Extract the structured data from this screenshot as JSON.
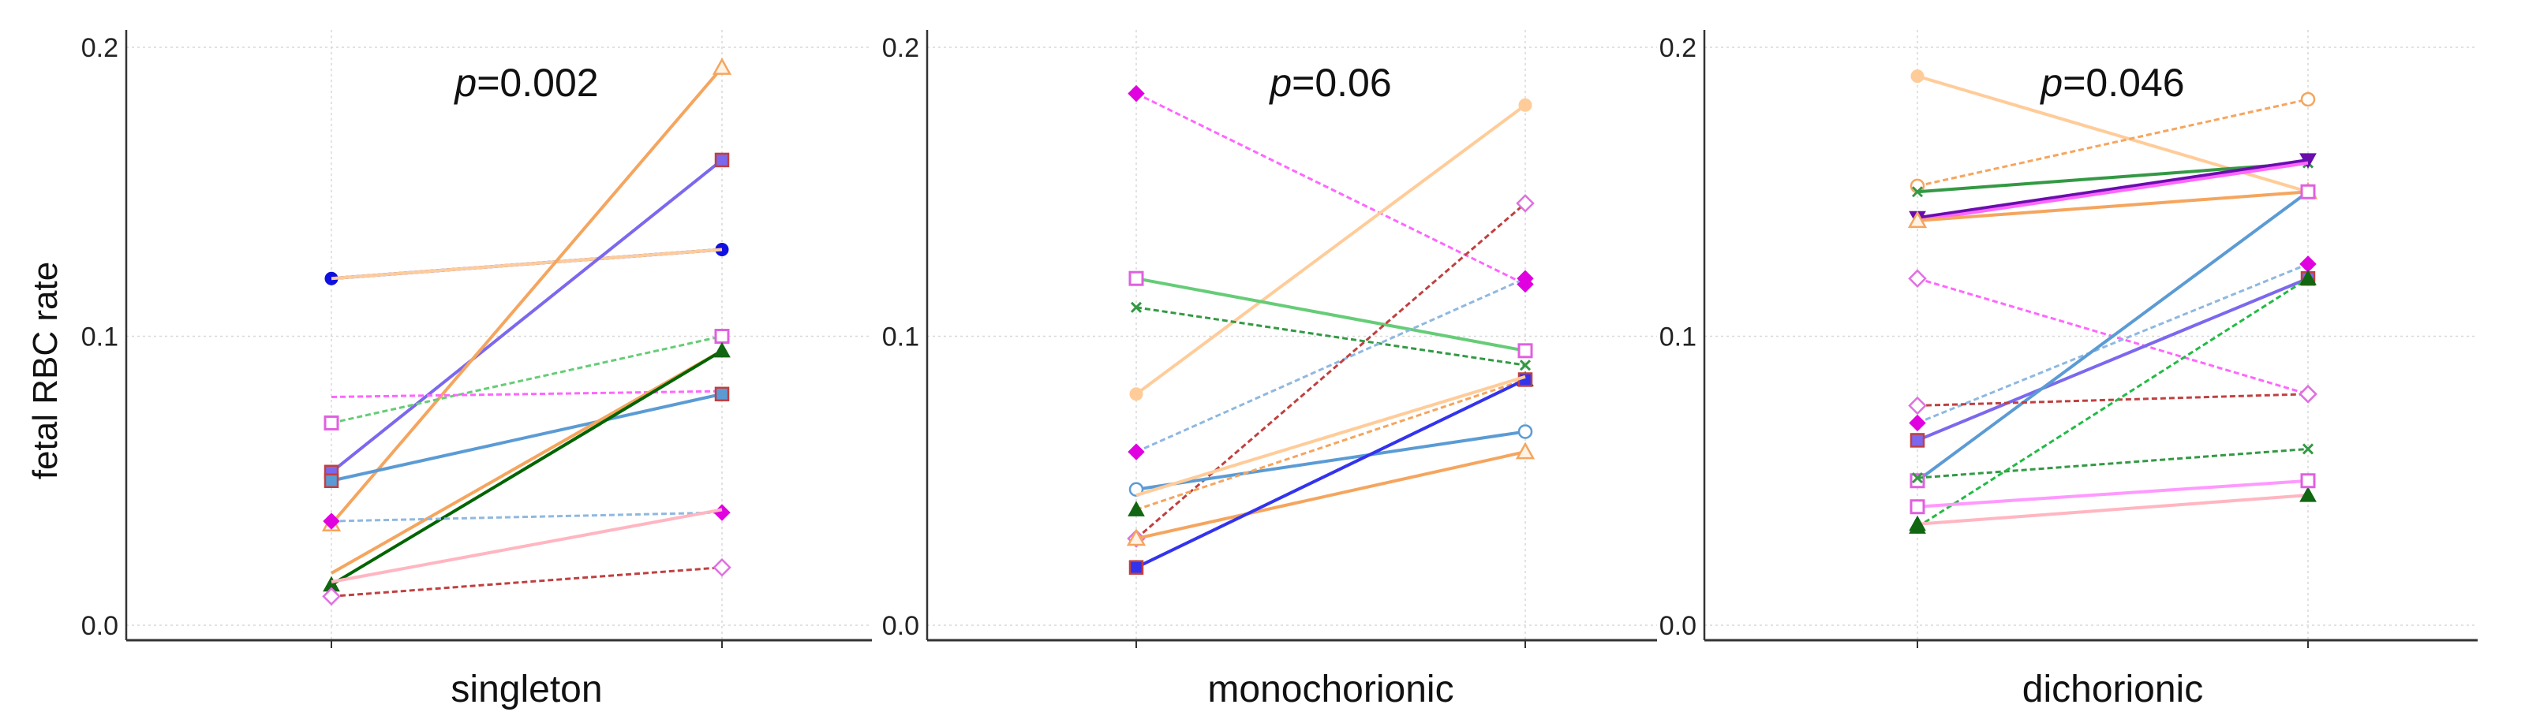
{
  "chart_data": {
    "type": "line",
    "ylabel": "fetal RBC rate",
    "y_ticks": [
      "0.0",
      "0.1",
      "0.2"
    ],
    "ylim": [
      0,
      0.2
    ],
    "grid": true,
    "panels": [
      {
        "title": "singleton",
        "p_prefix": "p",
        "p_value": "=0.002",
        "series": [
          {
            "name": "s1",
            "values": [
              0.12,
              0.13
            ],
            "color": "#1010e0",
            "dash": false,
            "marker": "circle-filled"
          },
          {
            "name": "s2",
            "values": [
              0.12,
              0.13
            ],
            "color": "#ffcc99",
            "dash": false,
            "marker": "none"
          },
          {
            "name": "s3",
            "values": [
              0.053,
              0.161
            ],
            "color": "#7b68ee",
            "dash": false,
            "marker": "square"
          },
          {
            "name": "s4",
            "values": [
              0.035,
              0.193
            ],
            "color": "#f5a55e",
            "dash": false,
            "marker": "triangle-open"
          },
          {
            "name": "s5",
            "values": [
              0.07,
              0.1
            ],
            "color": "#66cc77",
            "dash": true,
            "marker": "square-open-pink"
          },
          {
            "name": "s6",
            "values": [
              0.079,
              0.081
            ],
            "color": "#ff66ff",
            "dash": true,
            "marker": "none"
          },
          {
            "name": "s7",
            "values": [
              0.05,
              0.08
            ],
            "color": "#5b9bd5",
            "dash": false,
            "marker": "square"
          },
          {
            "name": "s8",
            "values": [
              0.018,
              0.095
            ],
            "color": "#c8a000",
            "dash": true,
            "marker": "none"
          },
          {
            "name": "s9",
            "values": [
              0.018,
              0.095
            ],
            "color": "#f5a55e",
            "dash": false,
            "marker": "none"
          },
          {
            "name": "s10",
            "values": [
              0.014,
              0.095
            ],
            "color": "#006400",
            "dash": false,
            "marker": "triangle-filled"
          },
          {
            "name": "s11",
            "values": [
              0.036,
              0.039
            ],
            "color": "#8fb8e0",
            "dash": true,
            "marker": "diamond-filled"
          },
          {
            "name": "s12",
            "values": [
              0.015,
              0.04
            ],
            "color": "#ffb6c1",
            "dash": false,
            "marker": "none"
          },
          {
            "name": "s13",
            "values": [
              0.01,
              0.02
            ],
            "color": "#c04040",
            "dash": true,
            "marker": "diamond-open"
          }
        ]
      },
      {
        "title": "monochorionic",
        "p_prefix": "p",
        "p_value": "=0.06",
        "series": [
          {
            "name": "m1",
            "values": [
              0.184,
              0.118
            ],
            "color": "#ff66ff",
            "dash": true,
            "marker": "diamond-filled"
          },
          {
            "name": "m2",
            "values": [
              0.08,
              0.18
            ],
            "color": "#ffcc99",
            "dash": false,
            "marker": "circle-filled"
          },
          {
            "name": "m3",
            "values": [
              0.12,
              0.095
            ],
            "color": "#66cc77",
            "dash": false,
            "marker": "square-open-pink"
          },
          {
            "name": "m4",
            "values": [
              0.11,
              0.09
            ],
            "color": "#339944",
            "dash": true,
            "marker": "x"
          },
          {
            "name": "m5",
            "values": [
              0.06,
              0.12
            ],
            "color": "#8fb8e0",
            "dash": true,
            "marker": "diamond-filled"
          },
          {
            "name": "m6",
            "values": [
              0.03,
              0.146
            ],
            "color": "#c04040",
            "dash": true,
            "marker": "diamond-open"
          },
          {
            "name": "m7",
            "values": [
              0.047,
              0.067
            ],
            "color": "#5b9bd5",
            "dash": false,
            "marker": "circle-open"
          },
          {
            "name": "m8",
            "values": [
              0.04,
              0.085
            ],
            "color": "#f5a55e",
            "dash": true,
            "marker": "triangle-filled"
          },
          {
            "name": "m9",
            "values": [
              0.03,
              0.06
            ],
            "color": "#f5a55e",
            "dash": false,
            "marker": "triangle-open"
          },
          {
            "name": "m10",
            "values": [
              0.02,
              0.085
            ],
            "color": "#3333ee",
            "dash": false,
            "marker": "square"
          },
          {
            "name": "m11",
            "values": [
              0.045,
              0.086
            ],
            "color": "#ffcc99",
            "dash": false,
            "marker": "none"
          }
        ]
      },
      {
        "title": "dichorionic",
        "p_prefix": "p",
        "p_value": "=0.046",
        "series": [
          {
            "name": "d1",
            "values": [
              0.19,
              0.15
            ],
            "color": "#ffcc99",
            "dash": false,
            "marker": "circle-filled"
          },
          {
            "name": "d2",
            "values": [
              0.152,
              0.182
            ],
            "color": "#f5a55e",
            "dash": true,
            "marker": "circle-open"
          },
          {
            "name": "d3",
            "values": [
              0.15,
              0.16
            ],
            "color": "#339944",
            "dash": false,
            "marker": "x"
          },
          {
            "name": "d4",
            "values": [
              0.141,
              0.161
            ],
            "color": "#6a0dad",
            "dash": false,
            "marker": "triangle-down"
          },
          {
            "name": "d5",
            "values": [
              0.14,
              0.16
            ],
            "color": "#ff66ff",
            "dash": false,
            "marker": "none"
          },
          {
            "name": "d6",
            "values": [
              0.14,
              0.15
            ],
            "color": "#f5a55e",
            "dash": false,
            "marker": "triangle-open"
          },
          {
            "name": "d7",
            "values": [
              0.12,
              0.08
            ],
            "color": "#ff66ff",
            "dash": true,
            "marker": "diamond-open"
          },
          {
            "name": "d8",
            "values": [
              0.07,
              0.125
            ],
            "color": "#8fb8e0",
            "dash": true,
            "marker": "diamond-filled"
          },
          {
            "name": "d9",
            "values": [
              0.064,
              0.12
            ],
            "color": "#7b68ee",
            "dash": false,
            "marker": "square"
          },
          {
            "name": "d10",
            "values": [
              0.05,
              0.15
            ],
            "color": "#5b9bd5",
            "dash": false,
            "marker": "square-open-pink"
          },
          {
            "name": "d11",
            "values": [
              0.076,
              0.08
            ],
            "color": "#c04040",
            "dash": true,
            "marker": "diamond-open"
          },
          {
            "name": "d12",
            "values": [
              0.051,
              0.061
            ],
            "color": "#339944",
            "dash": true,
            "marker": "x"
          },
          {
            "name": "d13",
            "values": [
              0.034,
              0.12
            ],
            "color": "#22bb44",
            "dash": true,
            "marker": "triangle-filled"
          },
          {
            "name": "d14",
            "values": [
              0.035,
              0.045
            ],
            "color": "#ffb6c1",
            "dash": false,
            "marker": "triangle-filled"
          },
          {
            "name": "d15",
            "values": [
              0.041,
              0.05
            ],
            "color": "#ff99ff",
            "dash": false,
            "marker": "square-open-pink"
          }
        ]
      }
    ]
  }
}
